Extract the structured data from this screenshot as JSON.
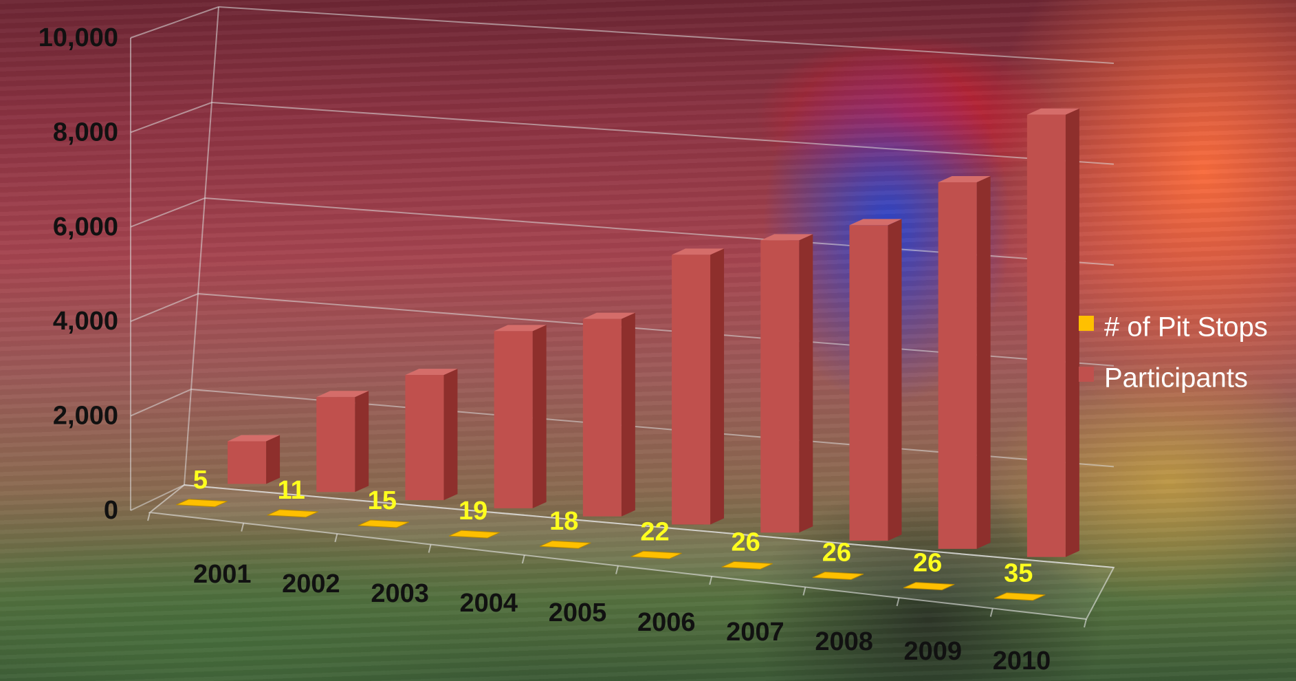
{
  "chart_data": {
    "type": "bar",
    "categories": [
      "2001",
      "2002",
      "2003",
      "2004",
      "2005",
      "2006",
      "2007",
      "2008",
      "2009",
      "2010"
    ],
    "series": [
      {
        "name": "# of Pit Stops",
        "values": [
          5,
          11,
          15,
          19,
          18,
          22,
          26,
          26,
          26,
          35
        ],
        "color": "#ffc000"
      },
      {
        "name": "Participants",
        "values": [
          1100,
          2400,
          3100,
          4300,
          4700,
          6300,
          6700,
          7100,
          8100,
          9600
        ],
        "color": "#c0504d"
      }
    ],
    "ylim": [
      0,
      10000
    ],
    "yticks": [
      "0",
      "2,000",
      "4,000",
      "6,000",
      "8,000",
      "10,000"
    ],
    "grid": true,
    "style": "3d-column",
    "legend_position": "right"
  }
}
